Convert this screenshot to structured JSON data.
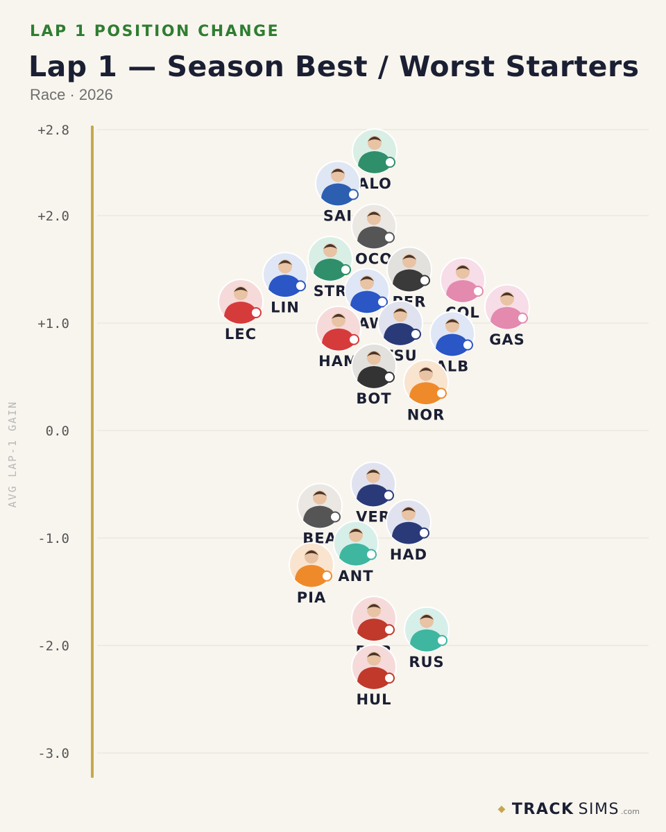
{
  "header": {
    "kicker": "LAP 1 POSITION CHANGE",
    "title": "Lap 1 — Season Best / Worst Starters",
    "subtitle": "Race · 2026"
  },
  "footer": {
    "brand_bold": "TRACK",
    "brand_light": "SIMS",
    "brand_domain": ".com"
  },
  "colors": {
    "background": "#f8f5ee",
    "axis_line": "#c5a84a",
    "kicker": "#2f7d32",
    "title": "#1b1f33",
    "tick_label": "#555555",
    "label": "#1b1f33"
  },
  "chart_data": {
    "type": "scatter",
    "ylabel": "AVG LAP-1 GAIN",
    "ylim": [
      -3.2,
      2.8
    ],
    "yticks": [
      2.8,
      2.0,
      1.0,
      0.0,
      -1.0,
      -2.0,
      -3.0
    ],
    "ytick_labels": [
      "+2.8",
      "+2.0",
      "+1.0",
      "0.0",
      "-1.0",
      "-2.0",
      "-3.0"
    ],
    "grid": true,
    "points": [
      {
        "driver": "ALO",
        "y": 2.6,
        "color": "#2f8f6b",
        "bg": "#d9efe6"
      },
      {
        "driver": "SAI",
        "y": 2.3,
        "color": "#2c5fb0",
        "bg": "#dfe7f4"
      },
      {
        "driver": "OCO",
        "y": 1.9,
        "color": "#555555",
        "bg": "#ebe7e3"
      },
      {
        "driver": "STR",
        "y": 1.6,
        "color": "#2f8f6b",
        "bg": "#d9efe6"
      },
      {
        "driver": "PER",
        "y": 1.5,
        "color": "#3a3a3a",
        "bg": "#e3e1dd"
      },
      {
        "driver": "LIN",
        "y": 1.45,
        "color": "#2a56c6",
        "bg": "#dfe6f5"
      },
      {
        "driver": "COL",
        "y": 1.4,
        "color": "#e38aae",
        "bg": "#f7dde7"
      },
      {
        "driver": "LAW",
        "y": 1.3,
        "color": "#2a56c6",
        "bg": "#dfe6f5"
      },
      {
        "driver": "GAS",
        "y": 1.15,
        "color": "#e38aae",
        "bg": "#f7dde7"
      },
      {
        "driver": "LEC",
        "y": 1.2,
        "color": "#d63b3b",
        "bg": "#f6dada"
      },
      {
        "driver": "TSU",
        "y": 1.0,
        "color": "#2a3a78",
        "bg": "#e0e3ef"
      },
      {
        "driver": "HAM",
        "y": 0.95,
        "color": "#d63b3b",
        "bg": "#f6dada"
      },
      {
        "driver": "ALB",
        "y": 0.9,
        "color": "#2a56c6",
        "bg": "#dfe6f5"
      },
      {
        "driver": "BOT",
        "y": 0.6,
        "color": "#333333",
        "bg": "#e3e1dd"
      },
      {
        "driver": "NOR",
        "y": 0.45,
        "color": "#ef8a2b",
        "bg": "#f9e4cf"
      },
      {
        "driver": "VER",
        "y": -0.5,
        "color": "#2a3a78",
        "bg": "#e0e3ef"
      },
      {
        "driver": "BEA",
        "y": -0.7,
        "color": "#555555",
        "bg": "#ebe7e3"
      },
      {
        "driver": "HAD",
        "y": -0.85,
        "color": "#2a3a78",
        "bg": "#e0e3ef"
      },
      {
        "driver": "ANT",
        "y": -1.05,
        "color": "#3fb6a0",
        "bg": "#d7efe9"
      },
      {
        "driver": "PIA",
        "y": -1.25,
        "color": "#ef8a2b",
        "bg": "#f9e4cf"
      },
      {
        "driver": "BOR",
        "y": -1.75,
        "color": "#c0392b",
        "bg": "#f6dada"
      },
      {
        "driver": "RUS",
        "y": -1.85,
        "color": "#3fb6a0",
        "bg": "#d7efe9"
      },
      {
        "driver": "HUL",
        "y": -2.2,
        "color": "#c0392b",
        "bg": "#f6dada"
      }
    ]
  }
}
